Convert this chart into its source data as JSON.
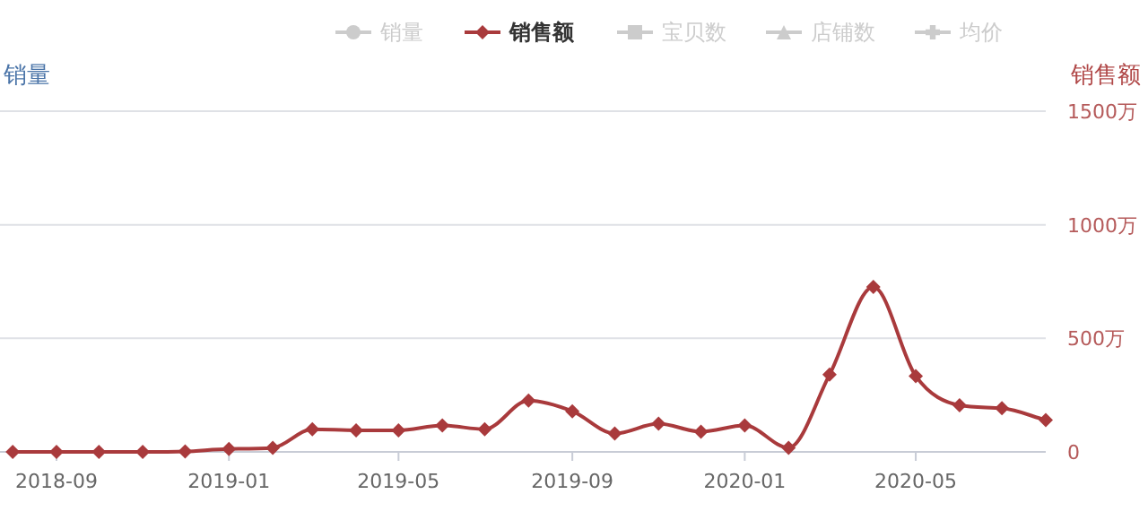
{
  "chart_data": {
    "type": "line",
    "ylabel": "销量",
    "y2label": "销售额",
    "x": [
      "2018-08",
      "2018-09",
      "2018-10",
      "2018-11",
      "2018-12",
      "2019-01",
      "2019-02",
      "2019-03",
      "2019-04",
      "2019-05",
      "2019-06",
      "2019-07",
      "2019-08",
      "2019-09",
      "2019-10",
      "2019-11",
      "2019-12",
      "2020-01",
      "2020-02",
      "2020-03",
      "2020-04",
      "2020-05",
      "2020-06",
      "2020-07",
      "2020-08"
    ],
    "xlim": [
      "2018-07-23",
      "2020-08"
    ],
    "xticks": [
      {
        "value": "2018-09",
        "label": "2018-09"
      },
      {
        "value": "2019-01",
        "label": "2019-01"
      },
      {
        "value": "2019-05",
        "label": "2019-05"
      },
      {
        "value": "2019-09",
        "label": "2019-09"
      },
      {
        "value": "2020-01",
        "label": "2020-01"
      },
      {
        "value": "2020-05",
        "label": "2020-05"
      }
    ],
    "y2lim": [
      0,
      1500
    ],
    "y2ticks": [
      0,
      {
        "value": 500,
        "label": "500万"
      },
      {
        "value": 1000,
        "label": "1000万"
      },
      {
        "value": 1500,
        "label": "1500万"
      }
    ],
    "grid": "y",
    "legend": "top right",
    "line_style": "solid",
    "series": [
      {
        "name": "销量",
        "color": "#cccccc",
        "marker": "circle",
        "axis": "y",
        "values": [
          null,
          null,
          null,
          null,
          null,
          null,
          null,
          null,
          null,
          null,
          null,
          null,
          null,
          null,
          null,
          null,
          null,
          null,
          null,
          null,
          null,
          null,
          null,
          null,
          null
        ]
      },
      {
        "name": "销售额",
        "color": "#a93a3c",
        "marker": "diamond",
        "axis": "y2",
        "values": [
          0,
          0,
          0,
          0,
          2,
          13,
          18,
          100,
          95,
          95,
          116,
          100,
          226,
          179,
          81,
          124,
          89,
          116,
          18,
          340,
          726,
          334,
          205,
          192,
          140
        ]
      },
      {
        "name": "宝贝数",
        "color": "#cccccc",
        "marker": "square",
        "axis": "y",
        "values": [
          null,
          null,
          null,
          null,
          null,
          null,
          null,
          null,
          null,
          null,
          null,
          null,
          null,
          null,
          null,
          null,
          null,
          null,
          null,
          null,
          null,
          null,
          null,
          null,
          null
        ]
      },
      {
        "name": "店铺数",
        "color": "#cccccc",
        "marker": "triangle",
        "axis": "y",
        "values": [
          null,
          null,
          null,
          null,
          null,
          null,
          null,
          null,
          null,
          null,
          null,
          null,
          null,
          null,
          null,
          null,
          null,
          null,
          null,
          null,
          null,
          null,
          null,
          null,
          null
        ]
      },
      {
        "name": "均价",
        "color": "#cccccc",
        "marker": "cross",
        "axis": "y",
        "values": [
          null,
          null,
          null,
          null,
          null,
          null,
          null,
          null,
          null,
          null,
          null,
          null,
          null,
          null,
          null,
          null,
          null,
          null,
          null,
          null,
          null,
          null,
          null,
          null,
          null
        ]
      }
    ]
  }
}
